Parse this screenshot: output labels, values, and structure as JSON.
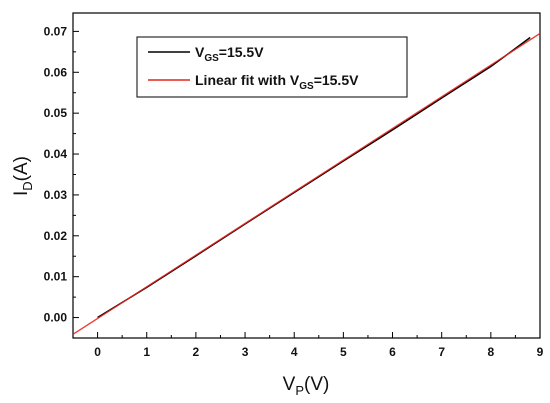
{
  "chart_data": {
    "type": "line",
    "xlabel": {
      "main": "V",
      "sub": "P",
      "unit": "(V)"
    },
    "ylabel": {
      "main": "I",
      "sub": "D",
      "unit": "(A)"
    },
    "xlim": [
      -0.5,
      9.0
    ],
    "ylim": [
      -0.005,
      0.0745
    ],
    "x_ticks": [
      0,
      1,
      2,
      3,
      4,
      5,
      6,
      7,
      8,
      9
    ],
    "x_tick_labels": [
      "0",
      "1",
      "2",
      "3",
      "4",
      "5",
      "6",
      "7",
      "8",
      "9"
    ],
    "y_ticks": [
      0.0,
      0.01,
      0.02,
      0.03,
      0.04,
      0.05,
      0.06,
      0.07
    ],
    "y_tick_labels": [
      "0.00",
      "0.01",
      "0.02",
      "0.03",
      "0.04",
      "0.05",
      "0.06",
      "0.07"
    ],
    "grid": false,
    "legend_position": "top-left",
    "series": [
      {
        "name": "V_GS=15.5V",
        "legend": {
          "main": "V",
          "sub": "GS",
          "rest": "=15.5V"
        },
        "color": "#000000",
        "x": [
          0,
          1,
          2,
          3,
          4,
          5,
          6,
          7,
          8,
          8.8
        ],
        "y": [
          0.0,
          0.0074,
          0.0151,
          0.0229,
          0.0306,
          0.0383,
          0.0459,
          0.0537,
          0.0614,
          0.0685
        ]
      },
      {
        "name": "Linear fit with V_GS=15.5V",
        "legend": {
          "main": "Linear fit with V",
          "sub": "GS",
          "rest": "=15.5V"
        },
        "color": "#e8231c",
        "x": [
          -0.5,
          9.0
        ],
        "y": [
          -0.0041,
          0.0695
        ]
      }
    ]
  }
}
